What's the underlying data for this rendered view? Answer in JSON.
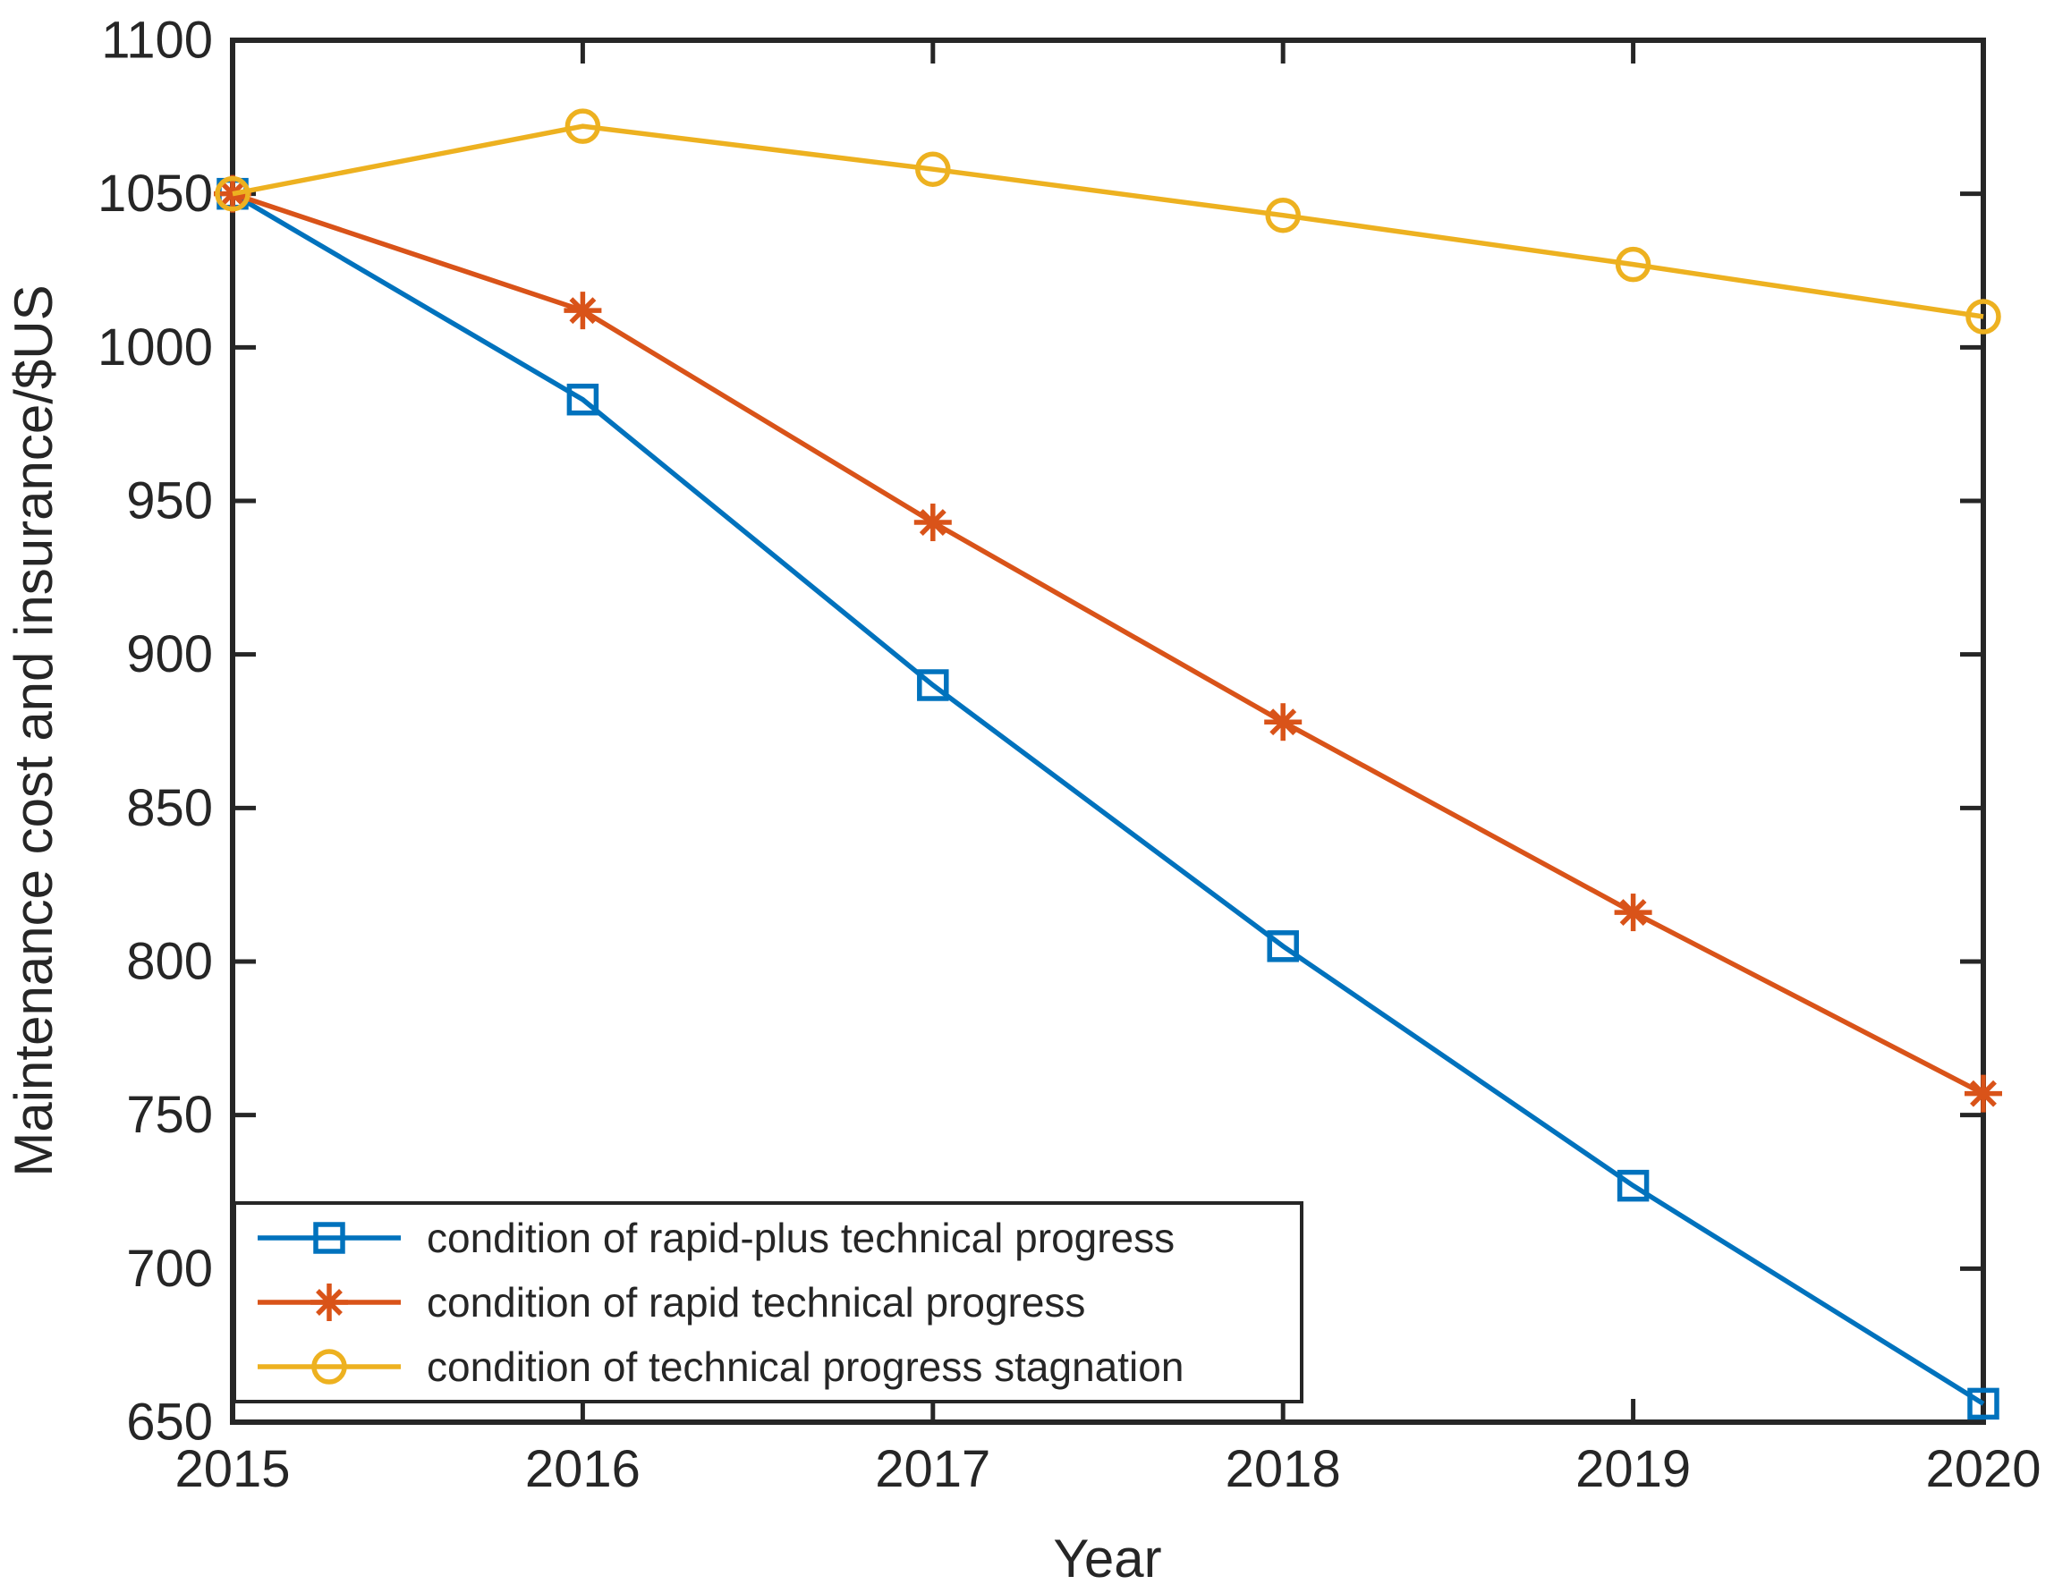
{
  "figure": {
    "background_color": "#ffffff",
    "axis_color": "#262626",
    "text_color": "#262626"
  },
  "chart_data": {
    "type": "line",
    "title": "",
    "xlabel": "Year",
    "ylabel": "Maintenance cost and insurance/$US",
    "x": [
      2015,
      2016,
      2017,
      2018,
      2019,
      2020
    ],
    "xticks": [
      2015,
      2016,
      2017,
      2018,
      2019,
      2020
    ],
    "yticks": [
      650,
      700,
      750,
      800,
      850,
      900,
      950,
      1000,
      1050,
      1100
    ],
    "xlim": [
      2015,
      2020
    ],
    "ylim": [
      650,
      1100
    ],
    "grid": false,
    "legend_position": "southwest",
    "series": [
      {
        "name": "condition of rapid-plus technical progress",
        "color": "#0072BD",
        "marker": "square",
        "values": [
          1050,
          983,
          890,
          805,
          727,
          656
        ]
      },
      {
        "name": "condition of rapid technical progress",
        "color": "#D95319",
        "marker": "asterisk",
        "values": [
          1050,
          1012,
          943,
          878,
          816,
          757
        ]
      },
      {
        "name": "condition of technical progress stagnation",
        "color": "#EDB120",
        "marker": "circle",
        "values": [
          1050,
          1072,
          1058,
          1043,
          1027,
          1010
        ]
      }
    ]
  }
}
